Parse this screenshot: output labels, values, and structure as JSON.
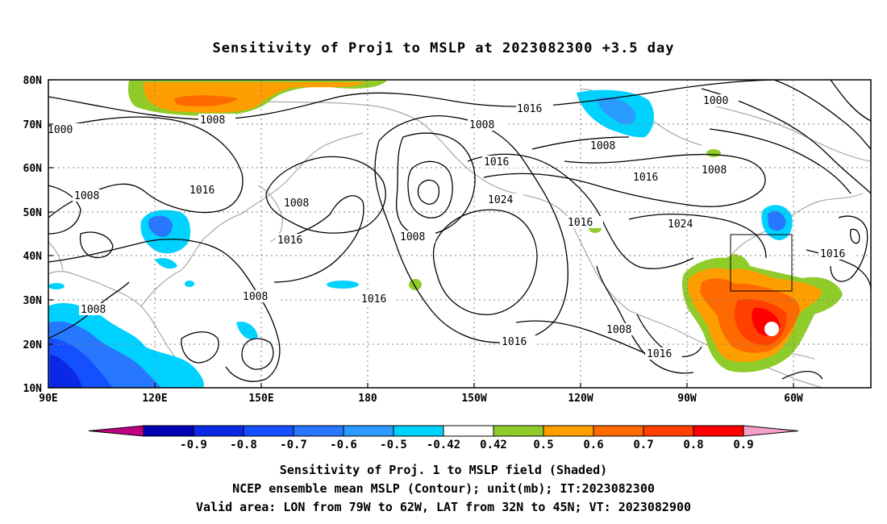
{
  "title": "Sensitivity of Proj1 to MSLP at 2023082300 +3.5 day",
  "lat_labels": [
    "80N",
    "70N",
    "60N",
    "50N",
    "40N",
    "30N",
    "20N",
    "10N"
  ],
  "lon_labels": [
    "90E",
    "120E",
    "150E",
    "180",
    "150W",
    "120W",
    "90W",
    "60W"
  ],
  "colorbar": {
    "labels": [
      "-0.9",
      "-0.8",
      "-0.7",
      "-0.6",
      "-0.5",
      "-0.42",
      "0.42",
      "0.5",
      "0.6",
      "0.7",
      "0.8",
      "0.9"
    ],
    "colors": [
      "#bf0080",
      "#0000b4",
      "#0a28e6",
      "#1450ff",
      "#2878ff",
      "#2a9cff",
      "#00d2ff",
      "#ffffff",
      "#8fcc2a",
      "#ff9e00",
      "#ff6a00",
      "#ff4000",
      "#ff0000",
      "#f5a0c8"
    ]
  },
  "contour_labels": {
    "c1": "1016",
    "c2": "1000",
    "c3": "1008",
    "c4": "1000",
    "c5": "1008",
    "c6": "1008",
    "c7": "1016",
    "c8": "1008",
    "c9": "1016",
    "c10": "1008",
    "c11": "1016",
    "c12": "1024",
    "c13": "1008",
    "c14": "1016",
    "c15": "1024",
    "c16": "1016",
    "c17": "1008",
    "c18": "1016",
    "c19": "1016",
    "c20": "1008",
    "c21": "1008",
    "c22": "1016",
    "c23": "1008"
  },
  "captions": {
    "line1": "Sensitivity of Proj. 1 to MSLP field (Shaded)",
    "line2": "NCEP ensemble mean MSLP (Contour); unit(mb); IT:2023082300",
    "line3": "Valid area: LON from 79W to 62W, LAT from 32N to 45N; VT: 2023082900"
  }
}
